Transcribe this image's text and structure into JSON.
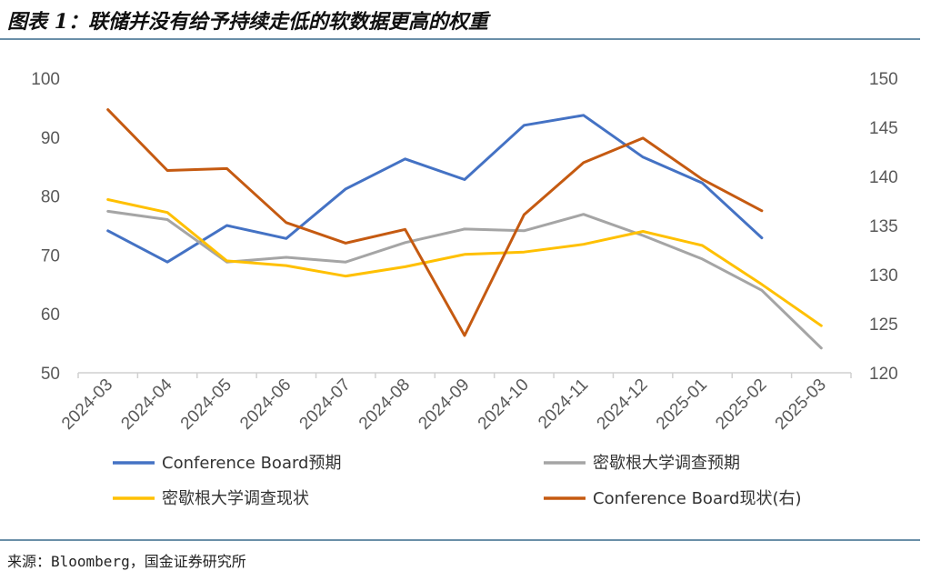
{
  "header": {
    "title": "图表 1：联储并没有给予持续走低的软数据更高的权重"
  },
  "footer": {
    "source": "来源：Bloomberg，国金证券研究所"
  },
  "chart_data": {
    "type": "line",
    "categories": [
      "2024-03",
      "2024-04",
      "2024-05",
      "2024-06",
      "2024-07",
      "2024-08",
      "2024-09",
      "2024-10",
      "2024-11",
      "2024-12",
      "2025-01",
      "2025-02",
      "2025-03"
    ],
    "y_left": {
      "min": 50,
      "max": 100,
      "ticks": [
        50,
        60,
        70,
        80,
        90,
        100
      ]
    },
    "y_right": {
      "min": 120,
      "max": 150,
      "ticks": [
        120,
        125,
        130,
        135,
        140,
        145,
        150
      ]
    },
    "grid": false,
    "legend_position": "bottom",
    "series": [
      {
        "name": "Conference Board预期",
        "axis": "left",
        "color": "#4472C4",
        "values": [
          74.1,
          68.8,
          75.0,
          72.8,
          81.2,
          86.3,
          82.8,
          92.0,
          93.7,
          86.6,
          82.2,
          72.9,
          null
        ]
      },
      {
        "name": "密歇根大学调查预期",
        "axis": "left",
        "color": "#A5A5A5",
        "values": [
          77.4,
          76.0,
          68.8,
          69.6,
          68.8,
          72.1,
          74.4,
          74.1,
          76.9,
          73.3,
          69.3,
          64.0,
          54.2
        ]
      },
      {
        "name": "密歇根大学调查现状",
        "axis": "left",
        "color": "#FFC000",
        "values": [
          79.4,
          77.2,
          69.0,
          68.2,
          66.4,
          68.0,
          70.1,
          70.5,
          71.8,
          74.0,
          71.6,
          65.0,
          58.0
        ]
      },
      {
        "name": "Conference Board现状(右)",
        "axis": "right",
        "color": "#C55A11",
        "values": [
          146.8,
          140.6,
          140.8,
          135.3,
          133.2,
          134.6,
          123.8,
          136.1,
          141.4,
          143.9,
          139.7,
          136.5,
          null
        ]
      }
    ]
  }
}
